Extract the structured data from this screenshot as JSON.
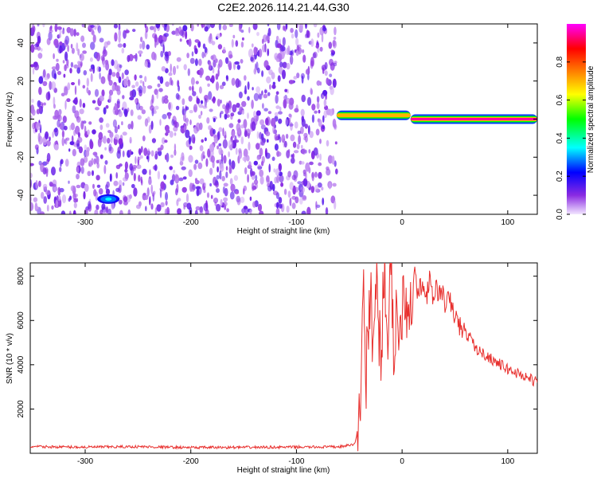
{
  "title": "C2E2.2026.114.21.44.G30",
  "chart_data": [
    {
      "type": "heatmap",
      "xlabel": "Height of straight line (km)",
      "ylabel": "Frequency (Hz)",
      "xlim": [
        -352,
        128
      ],
      "ylim": [
        -50,
        50
      ],
      "xticks": [
        -300,
        -200,
        -100,
        0,
        100
      ],
      "yticks": [
        -40,
        -20,
        0,
        20,
        40
      ],
      "colorbar": {
        "label": "Normalized spectral amplitude",
        "range": [
          0,
          1
        ],
        "ticks": [
          "0.0",
          "0.2",
          "0.4",
          "0.6",
          "0.8"
        ],
        "colormap": [
          "#f2e6ff",
          "#8a2be2",
          "#0000ff",
          "#00ffff",
          "#00ff00",
          "#ffff00",
          "#ff7f00",
          "#ff0000",
          "#ff00ff"
        ]
      },
      "features": [
        {
          "name": "background noise",
          "x_range": [
            -352,
            -62
          ],
          "y_range": [
            -50,
            50
          ],
          "amplitude": 0.1
        },
        {
          "name": "bright blob",
          "x": -278,
          "y": -42,
          "amplitude": 0.3
        },
        {
          "name": "signal onset",
          "x_range": [
            -62,
            8
          ],
          "y": 2,
          "amplitude": 0.7
        },
        {
          "name": "steady carrier",
          "x_range": [
            8,
            128
          ],
          "y": 0,
          "amplitude": 0.95
        }
      ]
    },
    {
      "type": "line",
      "xlabel": "Height of straight line (km)",
      "ylabel": "SNR (10 * v/v)",
      "xlim": [
        -352,
        128
      ],
      "ylim": [
        0,
        8600
      ],
      "xticks": [
        -300,
        -200,
        -100,
        0,
        100
      ],
      "yticks": [
        2000,
        4000,
        6000,
        8000
      ],
      "color": "#e8302e",
      "series": [
        {
          "x": [
            -352,
            -300,
            -250,
            -200,
            -150,
            -100,
            -60,
            -45,
            -40,
            -37,
            -34,
            -30,
            -27,
            -24,
            -20,
            -17,
            -14,
            -10,
            -8,
            -5,
            -2,
            0,
            2,
            5,
            8,
            10,
            12,
            15,
            18,
            20,
            23,
            26,
            29,
            32,
            35,
            38,
            40,
            45,
            50,
            55,
            60,
            65,
            70,
            80,
            90,
            100,
            110,
            120,
            128
          ],
          "y": [
            300,
            280,
            300,
            260,
            270,
            280,
            290,
            400,
            1500,
            8100,
            3500,
            7000,
            5200,
            7900,
            4000,
            8600,
            5500,
            7700,
            4600,
            6800,
            5000,
            6900,
            8000,
            6300,
            7500,
            6700,
            8500,
            7000,
            7600,
            7300,
            7100,
            7800,
            6900,
            7500,
            7200,
            7300,
            6800,
            6900,
            6200,
            5700,
            5400,
            5200,
            4700,
            4400,
            4100,
            3800,
            3600,
            3400,
            3200
          ]
        }
      ]
    }
  ]
}
